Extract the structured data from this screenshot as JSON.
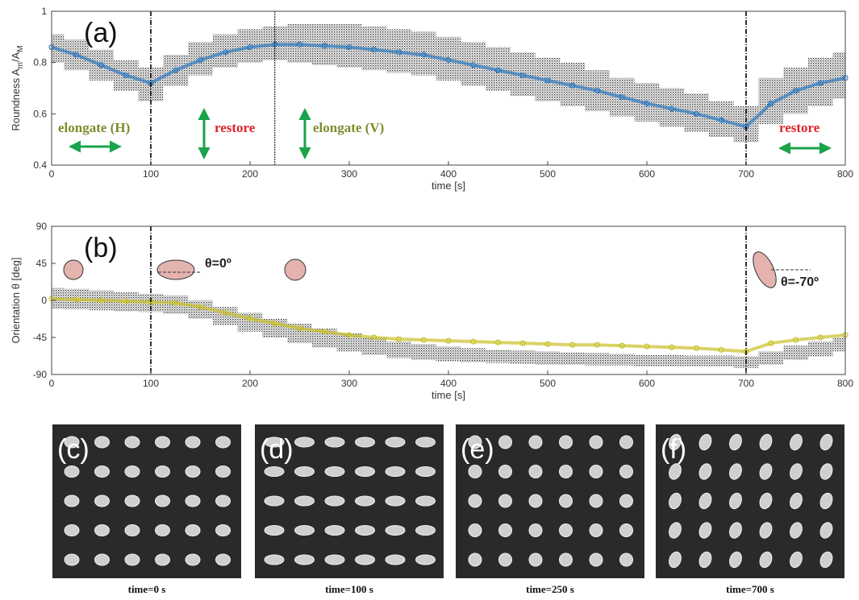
{
  "chart_data": [
    {
      "type": "scatter",
      "label": "(a)",
      "ylabel_parts": [
        "Roundness A",
        "m",
        "/A",
        "M"
      ],
      "xlabel": "time [s]",
      "xlim": [
        0,
        800
      ],
      "xticks": [
        0,
        100,
        200,
        300,
        400,
        500,
        600,
        700,
        800
      ],
      "ylim": [
        0.4,
        1
      ],
      "yticks": [
        0.4,
        0.6,
        0.8,
        1
      ],
      "vlines": [
        100,
        225,
        700
      ],
      "annotations": [
        "elongate (H)",
        "restore",
        "elongate (V)",
        "restore"
      ],
      "x": [
        0,
        25,
        50,
        75,
        100,
        125,
        150,
        175,
        200,
        225,
        250,
        275,
        300,
        325,
        350,
        375,
        400,
        425,
        450,
        475,
        500,
        525,
        550,
        575,
        600,
        625,
        650,
        675,
        700,
        725,
        750,
        775,
        800
      ],
      "cloud": {
        "color": "#000000",
        "high": [
          0.91,
          0.89,
          0.85,
          0.81,
          0.78,
          0.83,
          0.88,
          0.91,
          0.93,
          0.94,
          0.95,
          0.95,
          0.95,
          0.94,
          0.93,
          0.92,
          0.9,
          0.88,
          0.86,
          0.84,
          0.82,
          0.8,
          0.77,
          0.74,
          0.72,
          0.7,
          0.68,
          0.65,
          0.63,
          0.74,
          0.78,
          0.82,
          0.84
        ],
        "low": [
          0.8,
          0.77,
          0.73,
          0.69,
          0.65,
          0.71,
          0.75,
          0.78,
          0.8,
          0.81,
          0.8,
          0.79,
          0.78,
          0.77,
          0.76,
          0.75,
          0.73,
          0.71,
          0.69,
          0.67,
          0.65,
          0.63,
          0.61,
          0.59,
          0.57,
          0.55,
          0.53,
          0.51,
          0.49,
          0.56,
          0.6,
          0.63,
          0.66
        ]
      },
      "mean": {
        "color": "#2e7bbf",
        "values": [
          0.86,
          0.83,
          0.79,
          0.75,
          0.72,
          0.77,
          0.81,
          0.84,
          0.86,
          0.87,
          0.87,
          0.865,
          0.86,
          0.85,
          0.84,
          0.83,
          0.81,
          0.79,
          0.77,
          0.75,
          0.73,
          0.71,
          0.69,
          0.665,
          0.64,
          0.62,
          0.6,
          0.575,
          0.55,
          0.64,
          0.69,
          0.72,
          0.74
        ]
      }
    },
    {
      "type": "scatter",
      "label": "(b)",
      "ylabel": "Orientation θ [deg]",
      "xlabel": "time [s]",
      "xlim": [
        0,
        800
      ],
      "xticks": [
        0,
        100,
        200,
        300,
        400,
        500,
        600,
        700,
        800
      ],
      "ylim": [
        -90,
        90
      ],
      "yticks": [
        -90,
        -45,
        0,
        45,
        90
      ],
      "vlines": [
        100,
        700
      ],
      "annotations": [
        "θ=0º",
        "θ=-70º"
      ],
      "x": [
        0,
        25,
        50,
        75,
        100,
        125,
        150,
        175,
        200,
        225,
        250,
        275,
        300,
        325,
        350,
        375,
        400,
        425,
        450,
        475,
        500,
        525,
        550,
        575,
        600,
        625,
        650,
        675,
        700,
        725,
        750,
        775,
        800
      ],
      "cloud": {
        "color": "#000000",
        "high": [
          15,
          14,
          12,
          10,
          8,
          6,
          0,
          -8,
          -15,
          -22,
          -28,
          -34,
          -40,
          -45,
          -50,
          -53,
          -56,
          -58,
          -60,
          -61,
          -62,
          -63,
          -64,
          -65,
          -66,
          -66,
          -67,
          -67,
          -68,
          -62,
          -55,
          -50,
          -45
        ],
        "low": [
          -10,
          -11,
          -12,
          -13,
          -14,
          -16,
          -22,
          -30,
          -38,
          -45,
          -52,
          -57,
          -62,
          -66,
          -70,
          -72,
          -74,
          -75,
          -76,
          -77,
          -78,
          -78,
          -79,
          -79,
          -80,
          -80,
          -80,
          -80,
          -82,
          -78,
          -72,
          -68,
          -62
        ]
      },
      "mean": {
        "color": "#c9c127",
        "values": [
          2,
          1,
          0,
          -1,
          -2,
          -3,
          -8,
          -15,
          -22,
          -28,
          -34,
          -38,
          -42,
          -45,
          -47,
          -48,
          -49,
          -50,
          -51,
          -52,
          -53,
          -54,
          -54,
          -55,
          -56,
          -57,
          -58,
          -60,
          -62,
          -52,
          -48,
          -45,
          -42
        ]
      }
    }
  ],
  "images": [
    {
      "label": "(c)",
      "caption": "time=0 s"
    },
    {
      "label": "(d)",
      "caption": "time=100 s"
    },
    {
      "label": "(e)",
      "caption": "time=250 s"
    },
    {
      "label": "(f)",
      "caption": "time=700 s"
    }
  ]
}
